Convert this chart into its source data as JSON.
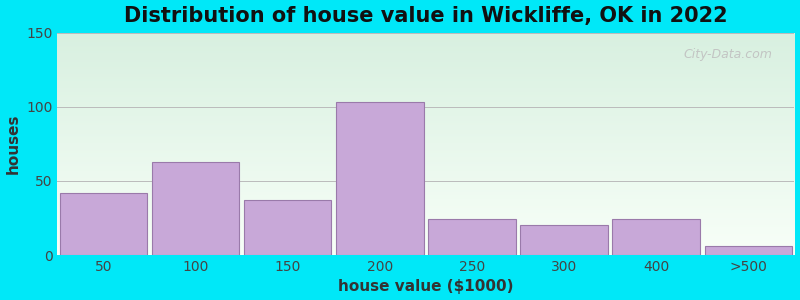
{
  "title": "Distribution of house value in Wickliffe, OK in 2022",
  "xlabel": "house value ($1000)",
  "ylabel": "houses",
  "bar_labels": [
    "50",
    "100",
    "150",
    "200",
    "250",
    "300",
    "400",
    ">500"
  ],
  "bar_values": [
    42,
    63,
    37,
    103,
    24,
    20,
    24,
    6
  ],
  "bar_color": "#c8a8d8",
  "bar_edgecolor": "#9a7aaa",
  "ylim": [
    0,
    150
  ],
  "yticks": [
    0,
    50,
    100,
    150
  ],
  "background_top": "#d8f0e0",
  "background_bottom": "#f8fff8",
  "outer_bg": "#00e8f8",
  "title_fontsize": 15,
  "axis_label_fontsize": 11,
  "tick_fontsize": 10,
  "watermark_text": "City-Data.com"
}
